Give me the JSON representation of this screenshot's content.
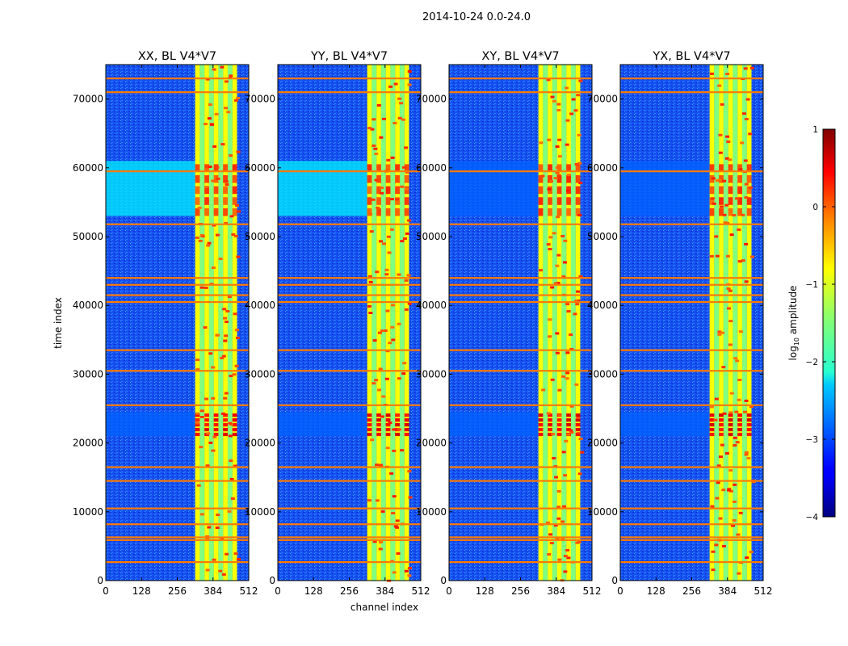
{
  "figure": {
    "title": "2014-10-24 0.0-24.0"
  },
  "chart_data": {
    "type": "heatmap",
    "suptitle": "2014-10-24 0.0-24.0",
    "xlabel": "channel index",
    "ylabel": "time index",
    "xlim": [
      0,
      512
    ],
    "ylim": [
      0,
      75000
    ],
    "xticks": [
      0,
      128,
      256,
      384,
      512
    ],
    "yticks": [
      0,
      10000,
      20000,
      30000,
      40000,
      50000,
      60000,
      70000
    ],
    "panels": [
      {
        "title": "XX, BL V4*V7",
        "pol": "XX"
      },
      {
        "title": "YY, BL V4*V7",
        "pol": "YY"
      },
      {
        "title": "XY, BL V4*V7",
        "pol": "XY"
      },
      {
        "title": "YX, BL V4*V7",
        "pol": "YX"
      }
    ],
    "colorbar": {
      "label": "log10 amplitude",
      "label_main": "log",
      "label_sub": "10",
      "label_tail": " amplitude",
      "min": -4,
      "max": 1,
      "ticks": [
        1,
        0,
        -1,
        -2,
        -3,
        -4
      ],
      "colormap": "jet"
    },
    "flagged_rows": [
      2700,
      5900,
      6300,
      8200,
      10500,
      14500,
      16500,
      25500,
      30500,
      33500,
      40500,
      41500,
      43000,
      44000,
      51800,
      59500,
      71000,
      73000
    ],
    "bright_bands": [
      {
        "channel_start": 320,
        "channel_end": 470,
        "level": -0.8
      }
    ],
    "enhanced_time_ranges": [
      {
        "start": 21000,
        "end": 24500,
        "level": 0.6
      },
      {
        "start": 53000,
        "end": 61000,
        "level": 0.2
      }
    ]
  }
}
